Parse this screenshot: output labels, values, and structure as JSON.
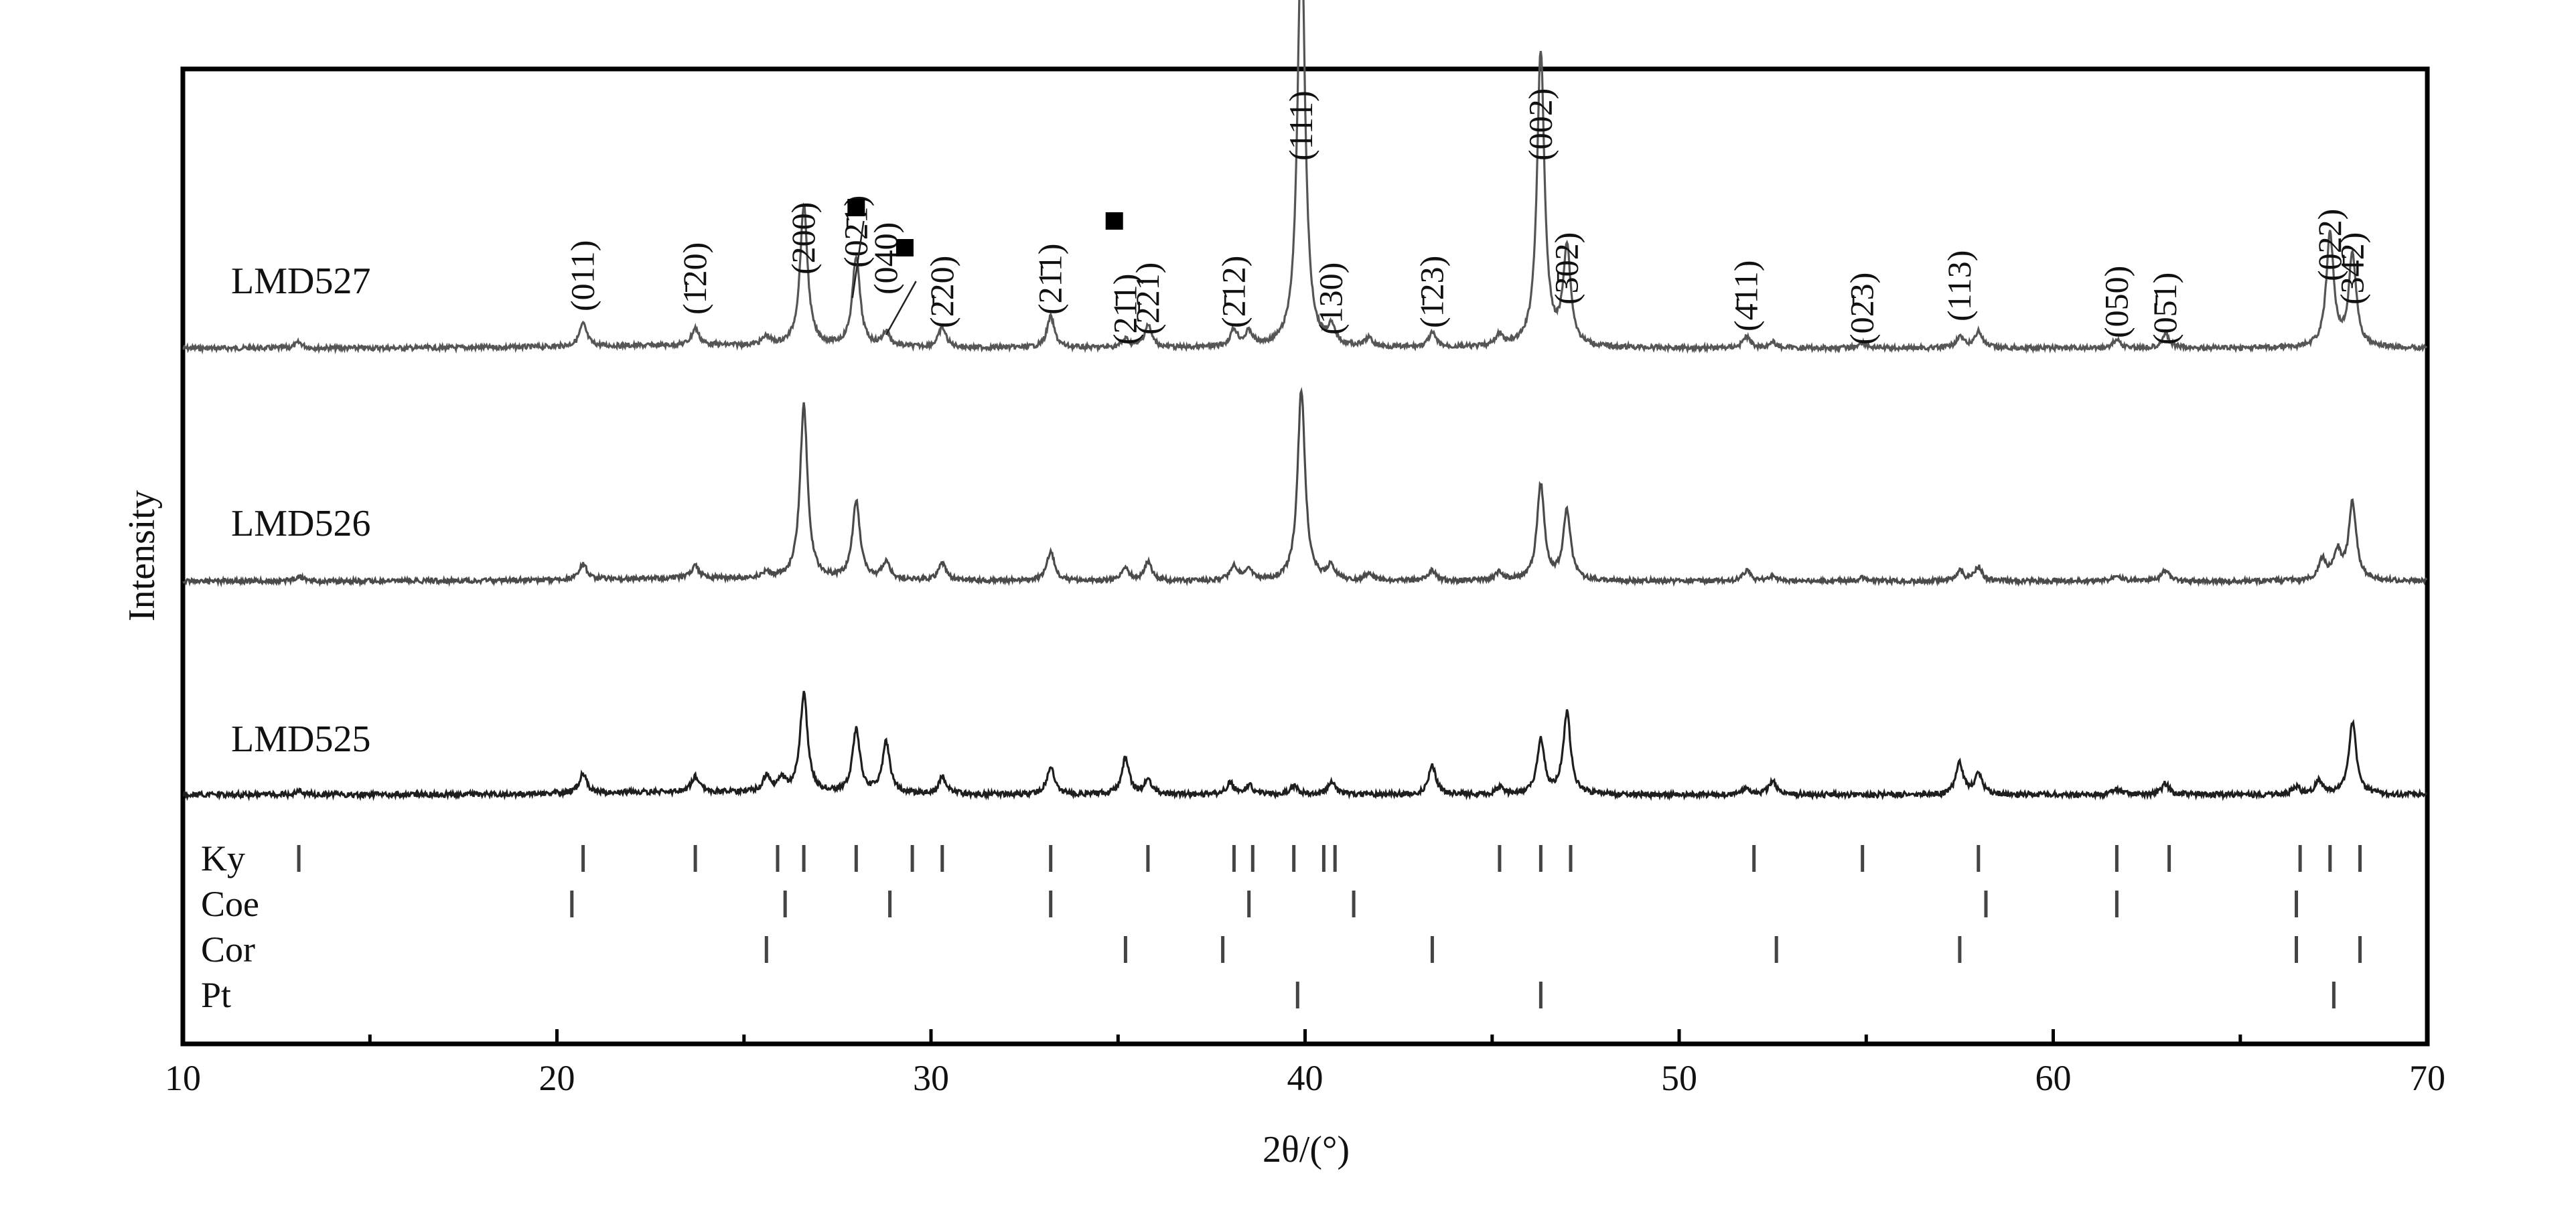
{
  "chart_data": {
    "type": "line",
    "xlabel": "2θ/(°)",
    "ylabel": "Intensity",
    "xlim": [
      10,
      70
    ],
    "xticks": [
      10,
      20,
      30,
      40,
      50,
      60,
      70
    ],
    "grid": false,
    "series": [
      {
        "name": "LMD527",
        "color": "#555555",
        "baseline": 0,
        "peaks": [
          [
            13.1,
            2
          ],
          [
            20.7,
            8
          ],
          [
            23.7,
            6
          ],
          [
            25.6,
            3
          ],
          [
            26.6,
            50
          ],
          [
            28.0,
            32
          ],
          [
            28.8,
            5
          ],
          [
            30.3,
            7
          ],
          [
            33.2,
            11
          ],
          [
            35.2,
            3
          ],
          [
            35.8,
            8
          ],
          [
            38.1,
            6
          ],
          [
            38.5,
            5
          ],
          [
            39.9,
            150
          ],
          [
            40.7,
            6
          ],
          [
            41.7,
            3
          ],
          [
            43.4,
            5
          ],
          [
            45.2,
            4
          ],
          [
            46.3,
            105
          ],
          [
            47.0,
            35
          ],
          [
            51.8,
            4
          ],
          [
            52.5,
            2
          ],
          [
            54.9,
            2
          ],
          [
            57.5,
            4
          ],
          [
            58.0,
            6
          ],
          [
            61.7,
            3
          ],
          [
            63.0,
            5
          ],
          [
            67.4,
            40
          ],
          [
            68.0,
            33
          ]
        ]
      },
      {
        "name": "LMD526",
        "color": "#4a4a4a",
        "baseline": 0,
        "peaks": [
          [
            13.1,
            3
          ],
          [
            20.7,
            9
          ],
          [
            23.7,
            7
          ],
          [
            25.6,
            3
          ],
          [
            26.6,
            100
          ],
          [
            28.0,
            45
          ],
          [
            28.8,
            10
          ],
          [
            30.3,
            10
          ],
          [
            33.2,
            17
          ],
          [
            35.2,
            7
          ],
          [
            35.8,
            11
          ],
          [
            38.1,
            9
          ],
          [
            38.5,
            6
          ],
          [
            39.9,
            110
          ],
          [
            40.7,
            8
          ],
          [
            41.7,
            4
          ],
          [
            43.4,
            6
          ],
          [
            45.2,
            5
          ],
          [
            46.3,
            55
          ],
          [
            47.0,
            40
          ],
          [
            51.8,
            6
          ],
          [
            52.5,
            3
          ],
          [
            54.9,
            2
          ],
          [
            57.5,
            6
          ],
          [
            58.0,
            8
          ],
          [
            61.7,
            4
          ],
          [
            63.0,
            6
          ],
          [
            67.2,
            12
          ],
          [
            67.6,
            16
          ],
          [
            68.0,
            45
          ]
        ]
      },
      {
        "name": "LMD525",
        "color": "#1e1e1e",
        "baseline": 0,
        "peaks": [
          [
            13.1,
            3
          ],
          [
            20.7,
            14
          ],
          [
            23.7,
            11
          ],
          [
            25.6,
            11
          ],
          [
            26.0,
            9
          ],
          [
            26.6,
            70
          ],
          [
            28.0,
            45
          ],
          [
            28.8,
            36
          ],
          [
            30.3,
            12
          ],
          [
            33.2,
            20
          ],
          [
            35.2,
            26
          ],
          [
            35.8,
            10
          ],
          [
            38.0,
            8
          ],
          [
            38.5,
            7
          ],
          [
            39.7,
            6
          ],
          [
            40.7,
            10
          ],
          [
            43.4,
            21
          ],
          [
            45.2,
            5
          ],
          [
            46.3,
            38
          ],
          [
            47.0,
            58
          ],
          [
            51.8,
            5
          ],
          [
            52.5,
            10
          ],
          [
            57.5,
            22
          ],
          [
            58.0,
            15
          ],
          [
            61.7,
            4
          ],
          [
            63.0,
            8
          ],
          [
            66.5,
            5
          ],
          [
            67.1,
            10
          ],
          [
            68.0,
            52
          ]
        ]
      }
    ],
    "hkl_labels": [
      {
        "text": "(011)",
        "x": 20.7
      },
      {
        "text": "(1̄20)",
        "x": 23.7
      },
      {
        "text": "(200)",
        "x": 26.6
      },
      {
        "text": "(02̄1)",
        "x": 28.0
      },
      {
        "text": "(040)",
        "x": 28.8
      },
      {
        "text": "(2̄20)",
        "x": 30.3
      },
      {
        "text": "(21̄1)",
        "x": 33.2
      },
      {
        "text": "(21̄1)",
        "x": 35.2
      },
      {
        "text": "(2̄21)",
        "x": 35.8
      },
      {
        "text": "(2̄12)",
        "x": 38.1
      },
      {
        "text": "(111)",
        "x": 39.9
      },
      {
        "text": "(130)",
        "x": 40.7
      },
      {
        "text": "(1̄23)",
        "x": 43.4
      },
      {
        "text": "(002)",
        "x": 46.3
      },
      {
        "text": "(3̄02)",
        "x": 47.0
      },
      {
        "text": "(4̄11)",
        "x": 51.8
      },
      {
        "text": "(02̄3)",
        "x": 54.9
      },
      {
        "text": "(113)",
        "x": 57.5
      },
      {
        "text": "(050)",
        "x": 61.7
      },
      {
        "text": "(05̄1)",
        "x": 63.0
      },
      {
        "text": "(022)",
        "x": 67.4
      },
      {
        "text": "(34̄2)",
        "x": 68.0
      }
    ],
    "square_markers": [
      28.0,
      29.3,
      34.9
    ],
    "reference_phases": [
      {
        "name": "Ky",
        "positions": [
          13.1,
          20.7,
          23.7,
          25.9,
          26.6,
          28.0,
          29.5,
          30.3,
          33.2,
          35.8,
          38.1,
          38.6,
          39.7,
          40.5,
          40.8,
          45.2,
          46.3,
          47.1,
          52.0,
          54.9,
          58.0,
          61.7,
          63.1,
          66.6,
          67.4,
          68.2
        ]
      },
      {
        "name": "Coe",
        "positions": [
          20.4,
          26.1,
          28.9,
          33.2,
          38.5,
          41.3,
          58.2,
          61.7,
          66.5
        ]
      },
      {
        "name": "Cor",
        "positions": [
          25.6,
          35.2,
          37.8,
          43.4,
          52.6,
          57.5,
          66.5,
          68.2
        ]
      },
      {
        "name": "Pt",
        "positions": [
          39.8,
          46.3,
          67.5
        ]
      }
    ]
  }
}
